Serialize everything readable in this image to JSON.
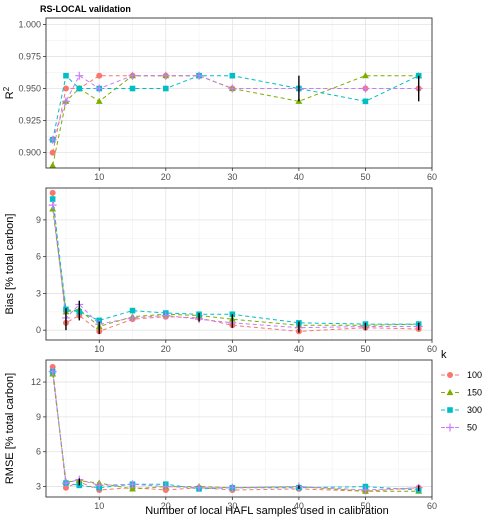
{
  "chart_data": {
    "title": "RS-LOCAL validation",
    "xlabel": "Number of local HAFL samples used in calibration",
    "legend": {
      "title": "k",
      "position": "right",
      "entries": [
        {
          "label": "100",
          "color": "#F8766D",
          "shape": "circle"
        },
        {
          "label": "150",
          "color": "#7CAE00",
          "shape": "triangle"
        },
        {
          "label": "300",
          "color": "#00BFC4",
          "shape": "square"
        },
        {
          "label": "50",
          "color": "#C77CFF",
          "shape": "plus"
        }
      ]
    },
    "x_ticks": [
      10,
      20,
      30,
      40,
      50,
      60
    ],
    "xlim": [
      2,
      60
    ],
    "panels": [
      {
        "type": "line",
        "ylabel": "R",
        "ylabel_sup": "2",
        "ylim": [
          0.888,
          1.005
        ],
        "y_ticks": [
          "0.900",
          "0.925",
          "0.950",
          "0.975",
          "1.000"
        ],
        "y_tick_values": [
          0.9,
          0.925,
          0.95,
          0.975,
          1.0
        ],
        "grid": true,
        "series": [
          {
            "name": "100",
            "x": [
              3,
              5,
              7,
              10,
              15,
              20,
              25,
              30,
              40,
              50,
              58
            ],
            "y": [
              0.9,
              0.95,
              0.95,
              0.96,
              0.96,
              0.96,
              0.96,
              0.95,
              0.95,
              0.95,
              0.95
            ]
          },
          {
            "name": "150",
            "x": [
              3,
              5,
              7,
              10,
              15,
              20,
              25,
              30,
              40,
              50,
              58
            ],
            "y": [
              0.89,
              0.94,
              0.95,
              0.94,
              0.96,
              0.96,
              0.96,
              0.95,
              0.94,
              0.96,
              0.96
            ]
          },
          {
            "name": "300",
            "x": [
              3,
              5,
              7,
              10,
              15,
              20,
              25,
              30,
              40,
              50,
              58
            ],
            "y": [
              0.91,
              0.96,
              0.95,
              0.95,
              0.95,
              0.95,
              0.96,
              0.96,
              0.95,
              0.94,
              0.96
            ]
          },
          {
            "name": "50",
            "x": [
              3,
              5,
              7,
              10,
              15,
              20,
              25,
              30,
              40,
              50,
              58
            ],
            "y": [
              0.91,
              0.94,
              0.96,
              0.95,
              0.96,
              0.96,
              0.96,
              0.95,
              0.95,
              0.95,
              0.95
            ]
          }
        ],
        "error_bars": [
          {
            "x": 40,
            "low": 0.94,
            "high": 0.96
          },
          {
            "x": 58,
            "low": 0.94,
            "high": 0.96
          }
        ]
      },
      {
        "type": "line",
        "ylabel": "Bias [% total carbon]",
        "ylim": [
          -0.8,
          11.6
        ],
        "y_ticks": [
          "0",
          "3",
          "6",
          "9"
        ],
        "y_tick_values": [
          0,
          3,
          6,
          9
        ],
        "grid": true,
        "series": [
          {
            "name": "100",
            "x": [
              3,
              5,
              7,
              10,
              15,
              20,
              25,
              30,
              40,
              50,
              58
            ],
            "y": [
              11.2,
              0.6,
              1.2,
              -0.1,
              0.9,
              1.1,
              1.0,
              0.4,
              -0.1,
              0.2,
              0.1
            ]
          },
          {
            "name": "150",
            "x": [
              3,
              5,
              7,
              10,
              15,
              20,
              25,
              30,
              40,
              50,
              58
            ],
            "y": [
              9.9,
              1.5,
              1.7,
              0.3,
              1.1,
              1.3,
              1.2,
              0.9,
              0.4,
              0.4,
              0.5
            ]
          },
          {
            "name": "300",
            "x": [
              3,
              5,
              7,
              10,
              15,
              20,
              25,
              30,
              40,
              50,
              58
            ],
            "y": [
              10.7,
              1.7,
              1.5,
              0.8,
              1.6,
              1.4,
              1.3,
              1.3,
              0.6,
              0.5,
              0.5
            ]
          },
          {
            "name": "50",
            "x": [
              3,
              5,
              7,
              10,
              15,
              20,
              25,
              30,
              40,
              50,
              58
            ],
            "y": [
              10.2,
              1.0,
              2.1,
              0.5,
              1.0,
              1.2,
              0.9,
              0.6,
              0.2,
              0.3,
              0.3
            ]
          }
        ],
        "error_bars": [
          {
            "x": 5,
            "low": 0.0,
            "high": 1.8
          },
          {
            "x": 7,
            "low": 0.8,
            "high": 2.4
          },
          {
            "x": 10,
            "low": -0.3,
            "high": 0.7
          },
          {
            "x": 25,
            "low": 0.7,
            "high": 1.4
          },
          {
            "x": 30,
            "low": 0.2,
            "high": 1.3
          },
          {
            "x": 40,
            "low": -0.2,
            "high": 0.7
          },
          {
            "x": 50,
            "low": 0.0,
            "high": 0.6
          },
          {
            "x": 58,
            "low": 0.0,
            "high": 0.6
          }
        ]
      },
      {
        "type": "line",
        "ylabel": "RMSE [% total carbon]",
        "ylim": [
          2.1,
          13.9
        ],
        "y_ticks": [
          "3",
          "6",
          "9",
          "12"
        ],
        "y_tick_values": [
          3,
          6,
          9,
          12
        ],
        "grid": true,
        "series": [
          {
            "name": "100",
            "x": [
              3,
              5,
              7,
              10,
              15,
              20,
              25,
              30,
              40,
              50,
              58
            ],
            "y": [
              13.3,
              2.9,
              3.4,
              2.7,
              2.9,
              2.7,
              2.9,
              2.7,
              2.8,
              2.6,
              2.9
            ]
          },
          {
            "name": "150",
            "x": [
              3,
              5,
              7,
              10,
              15,
              20,
              25,
              30,
              40,
              50,
              58
            ],
            "y": [
              12.7,
              3.4,
              3.5,
              3.3,
              2.8,
              3.0,
              3.0,
              2.9,
              3.0,
              2.6,
              2.6
            ]
          },
          {
            "name": "300",
            "x": [
              3,
              5,
              7,
              10,
              15,
              20,
              25,
              30,
              40,
              50,
              58
            ],
            "y": [
              12.9,
              3.3,
              3.1,
              2.9,
              3.2,
              3.2,
              2.8,
              2.9,
              2.9,
              3.0,
              2.7
            ]
          },
          {
            "name": "50",
            "x": [
              3,
              5,
              7,
              10,
              15,
              20,
              25,
              30,
              40,
              50,
              58
            ],
            "y": [
              12.9,
              3.3,
              3.6,
              3.1,
              3.2,
              3.0,
              2.9,
              2.9,
              3.0,
              2.7,
              2.9
            ]
          }
        ],
        "error_bars": [
          {
            "x": 7,
            "low": 3.1,
            "high": 3.7
          },
          {
            "x": 40,
            "low": 2.8,
            "high": 3.1
          },
          {
            "x": 58,
            "low": 2.6,
            "high": 3.1
          }
        ]
      }
    ]
  }
}
